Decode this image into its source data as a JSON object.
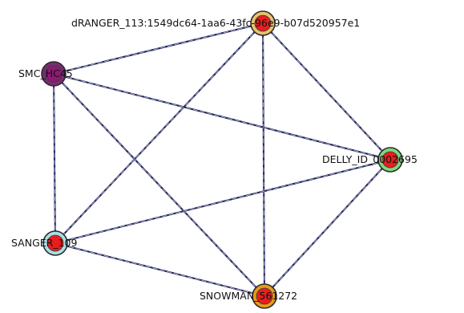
{
  "graph": {
    "nodes": [
      {
        "id": "dranger",
        "label": "dRANGER_113:1549dc64-1aa6-43fc-96e9-b07d520957e1",
        "outer_color": "#e8c46e",
        "inner_color": "#e81e1e",
        "label_anchor": "end"
      },
      {
        "id": "smc",
        "label": "SMC_HC45",
        "outer_color": "#7a2a72",
        "inner_color": "#8d1a70",
        "label_anchor": "end"
      },
      {
        "id": "delly",
        "label": "DELLY_ID_0002695",
        "outer_color": "#7ed87e",
        "inner_color": "#e81e1e",
        "label_anchor": "end"
      },
      {
        "id": "sanger",
        "label": "SANGER_109",
        "outer_color": "#a9dfe8",
        "inner_color": "#e81e1e",
        "label_anchor": "end"
      },
      {
        "id": "snowman",
        "label": "SNOWMAN_561272",
        "outer_color": "#e89a18",
        "inner_color": "#e81e1e",
        "label_anchor": "middle"
      }
    ],
    "edges": [
      {
        "source": "dranger",
        "target": "smc"
      },
      {
        "source": "dranger",
        "target": "delly"
      },
      {
        "source": "dranger",
        "target": "sanger"
      },
      {
        "source": "dranger",
        "target": "snowman"
      },
      {
        "source": "smc",
        "target": "delly"
      },
      {
        "source": "smc",
        "target": "sanger"
      },
      {
        "source": "smc",
        "target": "snowman"
      },
      {
        "source": "delly",
        "target": "sanger"
      },
      {
        "source": "delly",
        "target": "snowman"
      },
      {
        "source": "sanger",
        "target": "snowman"
      }
    ],
    "edge_color": "#27285e"
  }
}
